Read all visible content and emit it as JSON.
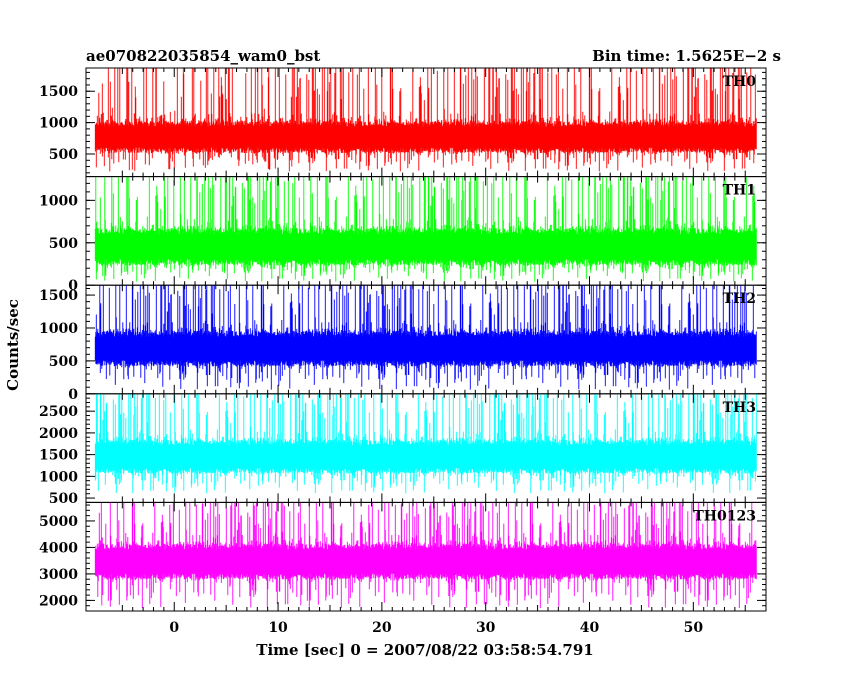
{
  "header": {
    "title": "ae070822035854_wam0_bst",
    "bin_time": "Bin time: 1.5625E−2 s"
  },
  "axes": {
    "xlabel": "Time [sec] 0 = 2007/08/22 03:58:54.791",
    "ylabel": "Counts/sec"
  },
  "chart_data": [
    {
      "type": "line",
      "series": [
        {
          "name": "TH0",
          "color": "#ff0000"
        }
      ],
      "xlim": [
        -8.5,
        57
      ],
      "data_x_range": [
        -7.6,
        56.1
      ],
      "ylim": [
        140,
        1870
      ],
      "yticks": [
        500,
        1000,
        1500
      ],
      "xticks": [
        0,
        10,
        20,
        30,
        40,
        50
      ],
      "signal": {
        "mean": 800,
        "spread": 150,
        "min_floor": 220,
        "spike_max": 1870
      }
    },
    {
      "type": "line",
      "series": [
        {
          "name": "TH1",
          "color": "#00ff00"
        }
      ],
      "xlim": [
        -8.5,
        57
      ],
      "data_x_range": [
        -7.6,
        56.1
      ],
      "ylim": [
        0,
        1280
      ],
      "yticks": [
        0,
        500,
        1000
      ],
      "xticks": [
        0,
        10,
        20,
        30,
        40,
        50
      ],
      "signal": {
        "mean": 480,
        "spread": 130,
        "min_floor": 40,
        "spike_max": 1280
      }
    },
    {
      "type": "line",
      "series": [
        {
          "name": "TH2",
          "color": "#0000ff"
        }
      ],
      "xlim": [
        -8.5,
        57
      ],
      "data_x_range": [
        -7.6,
        56.1
      ],
      "ylim": [
        0,
        1650
      ],
      "yticks": [
        0,
        500,
        1000,
        1500
      ],
      "xticks": [
        0,
        10,
        20,
        30,
        40,
        50
      ],
      "signal": {
        "mean": 720,
        "spread": 160,
        "min_floor": 60,
        "spike_max": 1650
      }
    },
    {
      "type": "line",
      "series": [
        {
          "name": "TH3",
          "color": "#00ffff"
        }
      ],
      "xlim": [
        -8.5,
        57
      ],
      "data_x_range": [
        -7.6,
        56.1
      ],
      "ylim": [
        400,
        2900
      ],
      "yticks": [
        500,
        1000,
        1500,
        2000,
        2500
      ],
      "xticks": [
        0,
        10,
        20,
        30,
        40,
        50
      ],
      "signal": {
        "mean": 1500,
        "spread": 230,
        "min_floor": 600,
        "spike_max": 2900
      }
    },
    {
      "type": "line",
      "series": [
        {
          "name": "TH0123",
          "color": "#ff00ff"
        }
      ],
      "xlim": [
        -8.5,
        57
      ],
      "data_x_range": [
        -7.6,
        56.1
      ],
      "ylim": [
        1600,
        5700
      ],
      "yticks": [
        2000,
        3000,
        4000,
        5000
      ],
      "xticks": [
        0,
        10,
        20,
        30,
        40,
        50
      ],
      "signal": {
        "mean": 3550,
        "spread": 400,
        "min_floor": 1700,
        "spike_max": 5500
      }
    }
  ]
}
